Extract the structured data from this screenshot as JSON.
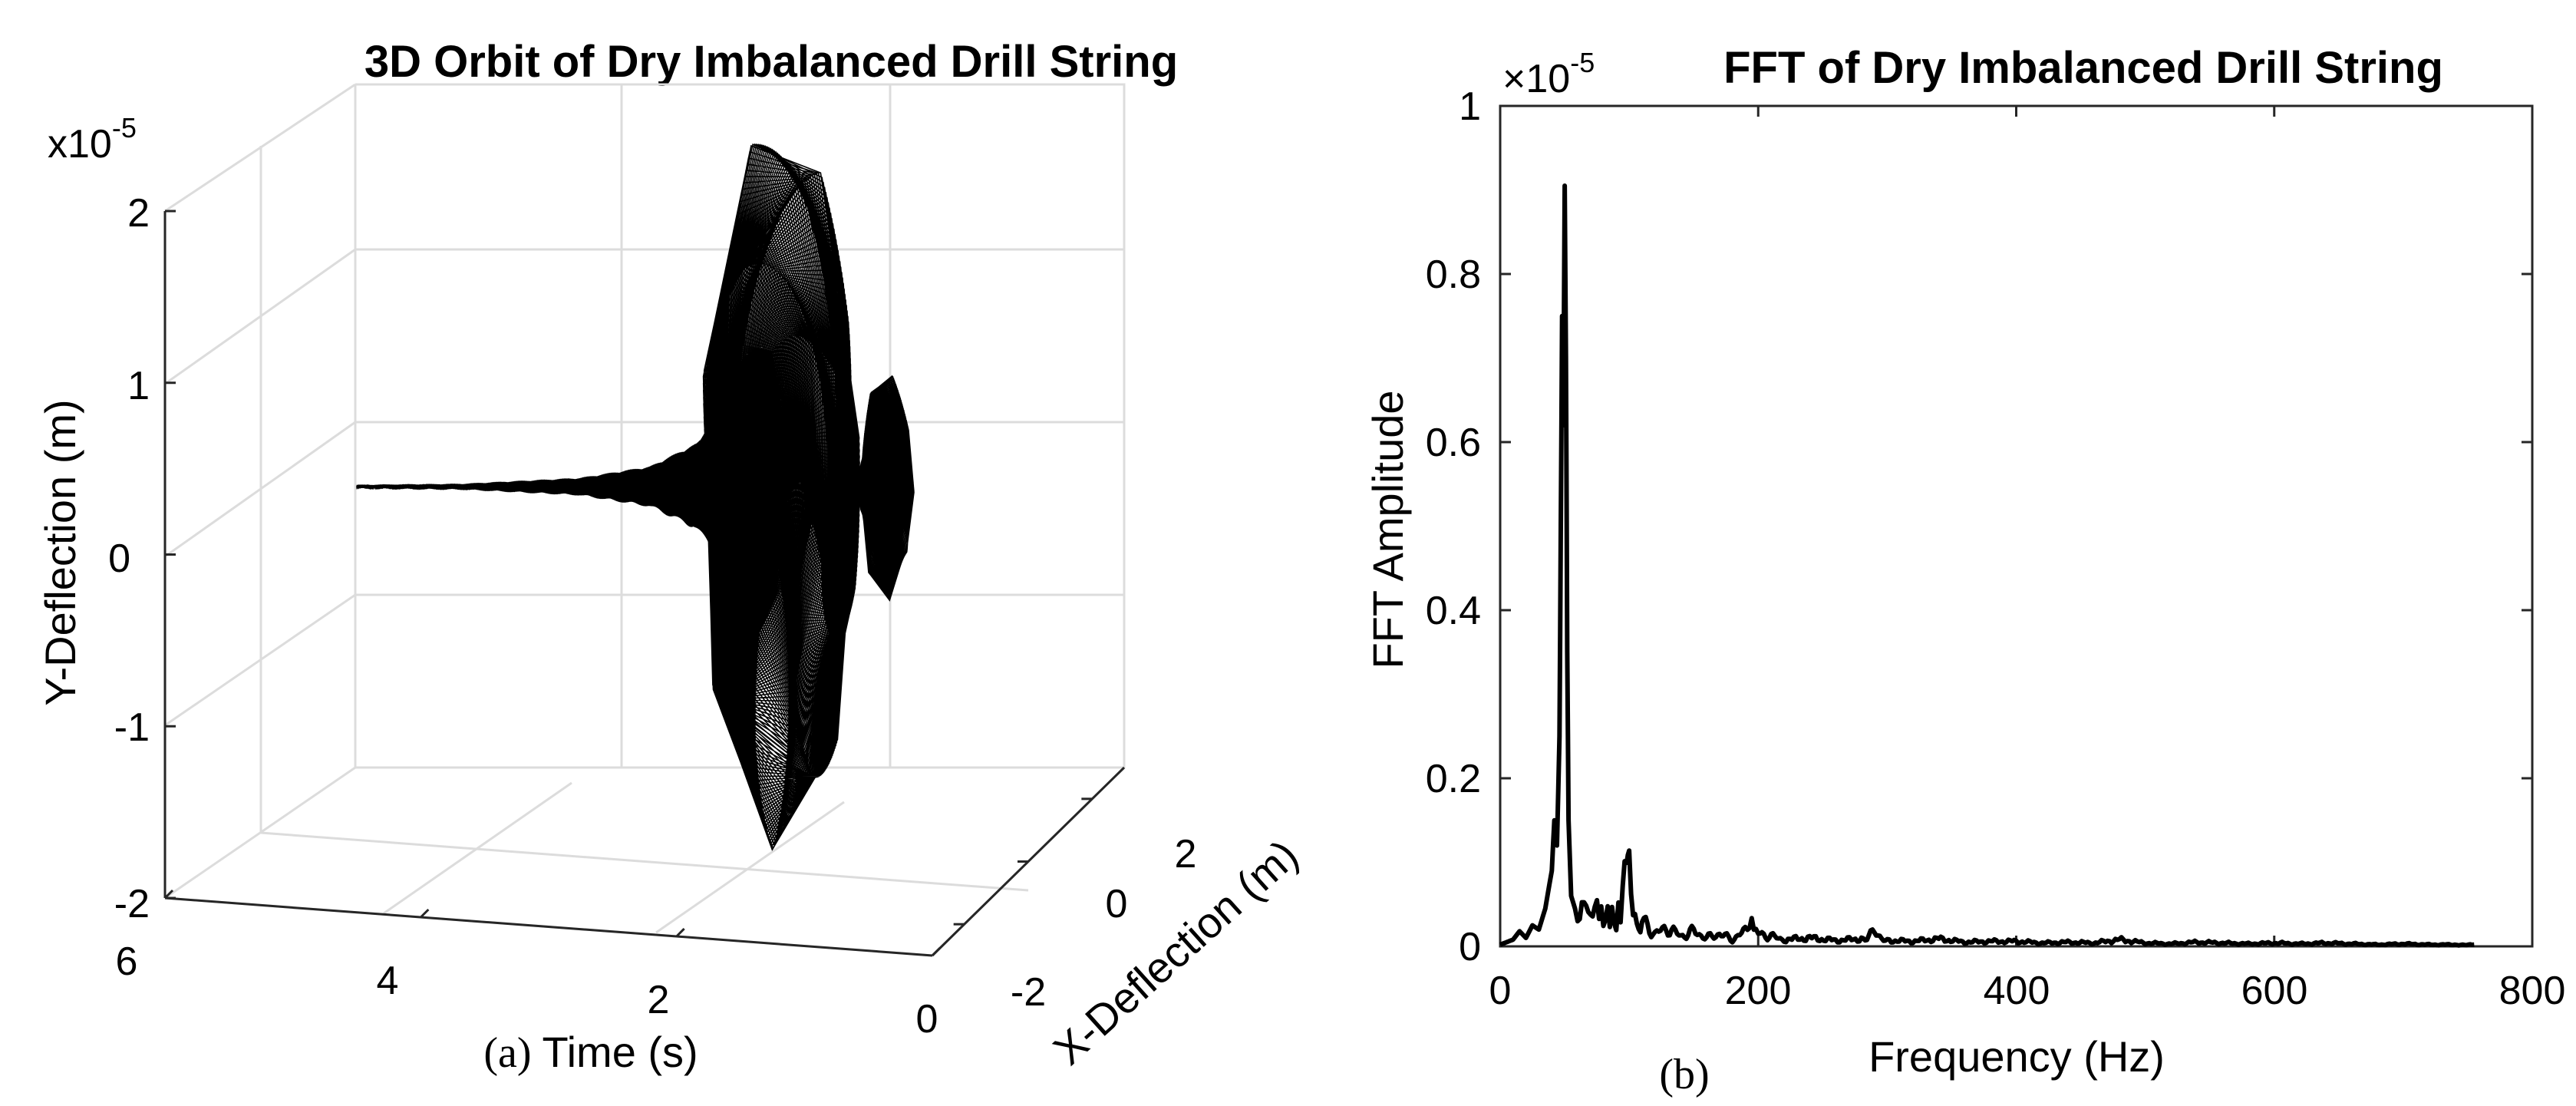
{
  "chart_data": [
    {
      "type": "line",
      "subtype": "3d-orbit",
      "title": "3D Orbit of Dry Imbalanced Drill String",
      "caption": "(a)",
      "xlabel": "Time (s)",
      "ylabel": "X-Deflection (m)",
      "zlabel": "Y-Deflection (m)",
      "z_exponent": "x10",
      "z_exponent_power": "-5",
      "x_ticks": [
        "6",
        "4",
        "2",
        "0"
      ],
      "y_ticks": [
        "-2",
        "0",
        "2"
      ],
      "z_ticks": [
        "2",
        "1",
        "0",
        "-1",
        "-2"
      ],
      "xlim": [
        0,
        6
      ],
      "ylim": [
        -3,
        3
      ],
      "zlim": [
        -2,
        2
      ],
      "grid": true,
      "series": [
        {
          "name": "orbit",
          "description": "spiral orbit growing from near zero (t≈4.9 s) to peak amplitude ≈1.9e-5 m near t≈1.3 s, then decaying to a small secondary orbit near t≈0",
          "time_s": [
            4.9,
            4.0,
            3.0,
            2.4,
            2.0,
            1.7,
            1.5,
            1.4,
            1.3,
            1.2,
            1.0,
            0.9,
            0.8,
            0.6,
            0.5,
            0.4,
            0.3
          ],
          "amplitude": [
            0.005,
            0.01,
            0.04,
            0.1,
            0.22,
            0.45,
            0.8,
            1.3,
            1.9,
            1.6,
            0.6,
            0.05,
            0.03,
            0.1,
            0.3,
            0.6,
            0.4
          ]
        }
      ]
    },
    {
      "type": "line",
      "title": "FFT of Dry Imbalanced Drill String",
      "caption": "(b)",
      "xlabel": "Frequency (Hz)",
      "ylabel": "FFT Amplitude",
      "y_exponent": "×10",
      "y_exponent_power": "-5",
      "xlim": [
        0,
        800
      ],
      "ylim": [
        0,
        1
      ],
      "x_ticks": [
        "0",
        "200",
        "400",
        "600",
        "800"
      ],
      "y_ticks": [
        "0",
        "0.2",
        "0.4",
        "0.6",
        "0.8",
        "1"
      ],
      "grid": false,
      "series": [
        {
          "name": "FFT",
          "x": [
            0,
            10,
            15,
            20,
            25,
            30,
            35,
            40,
            42,
            44,
            46,
            47,
            48,
            49,
            50,
            51,
            52,
            53,
            55,
            58,
            60,
            65,
            70,
            75,
            80,
            85,
            90,
            95,
            98,
            100,
            103,
            106,
            110,
            120,
            130,
            140,
            150,
            160,
            170,
            180,
            190,
            195,
            200,
            210,
            220,
            240,
            260,
            280,
            290,
            300,
            320,
            340,
            360,
            380,
            400,
            420,
            440,
            460,
            480,
            500,
            520,
            540,
            560,
            580,
            600,
            620,
            640,
            660,
            680,
            700,
            720,
            740,
            755
          ],
          "y": [
            0.002,
            0.008,
            0.018,
            0.01,
            0.025,
            0.02,
            0.045,
            0.09,
            0.15,
            0.12,
            0.25,
            0.5,
            0.75,
            0.62,
            0.905,
            0.7,
            0.35,
            0.15,
            0.06,
            0.045,
            0.03,
            0.055,
            0.035,
            0.05,
            0.03,
            0.04,
            0.025,
            0.06,
            0.108,
            0.085,
            0.035,
            0.02,
            0.03,
            0.015,
            0.022,
            0.012,
            0.018,
            0.01,
            0.015,
            0.008,
            0.018,
            0.028,
            0.015,
            0.012,
            0.008,
            0.01,
            0.007,
            0.009,
            0.016,
            0.007,
            0.006,
            0.009,
            0.005,
            0.006,
            0.006,
            0.004,
            0.005,
            0.004,
            0.008,
            0.004,
            0.003,
            0.005,
            0.004,
            0.003,
            0.004,
            0.003,
            0.004,
            0.003,
            0.002,
            0.003,
            0.002,
            0.002,
            0.002
          ]
        }
      ]
    }
  ]
}
